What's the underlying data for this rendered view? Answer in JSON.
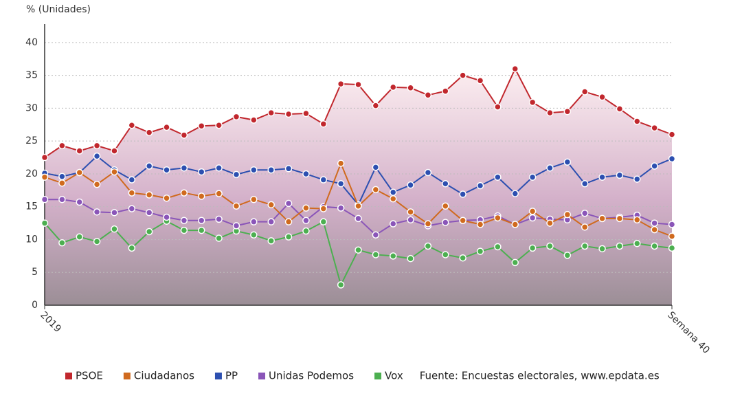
{
  "chart_data": {
    "type": "line",
    "y_axis_label": "% (Unidades)",
    "source": "Fuente: Encuestas electorales, www.epdata.es",
    "categories": [
      "2019",
      null,
      null,
      null,
      null,
      null,
      null,
      null,
      null,
      null,
      null,
      null,
      null,
      null,
      null,
      null,
      null,
      null,
      null,
      null,
      null,
      null,
      null,
      null,
      null,
      null,
      null,
      null,
      null,
      null,
      null,
      null,
      null,
      null,
      null,
      null,
      "Semana 40"
    ],
    "ylim": [
      0,
      42.5
    ],
    "yticks": [
      0,
      5,
      10,
      15,
      20,
      25,
      30,
      35,
      40
    ],
    "grid": true,
    "legend": "bottom",
    "series": [
      {
        "name": "PSOE",
        "color": "#c1272d",
        "values": [
          22.5,
          24.3,
          23.5,
          24.3,
          23.5,
          27.4,
          26.3,
          27.1,
          25.9,
          27.3,
          27.4,
          28.7,
          28.2,
          29.3,
          29.1,
          29.2,
          27.6,
          33.7,
          33.6,
          30.4,
          33.2,
          33.1,
          32.0,
          32.6,
          35.0,
          34.2,
          30.2,
          36.0,
          30.9,
          29.3,
          29.5,
          32.5,
          31.7,
          29.9,
          28.0,
          27.0,
          26.0
        ]
      },
      {
        "name": "Ciudadanos",
        "color": "#d06a1e",
        "values": [
          19.5,
          18.6,
          20.2,
          18.4,
          20.3,
          17.1,
          16.8,
          16.3,
          17.1,
          16.6,
          17.0,
          15.1,
          16.1,
          15.3,
          12.7,
          14.8,
          14.7,
          21.6,
          15.1,
          17.6,
          16.2,
          14.2,
          12.4,
          15.1,
          12.9,
          12.3,
          13.3,
          12.3,
          14.3,
          12.5,
          13.8,
          11.9,
          13.2,
          13.2,
          13.0,
          11.5,
          10.5
        ]
      },
      {
        "name": "PP",
        "color": "#2c4fb0",
        "values": [
          20.1,
          19.6,
          20.2,
          22.7,
          20.6,
          19.1,
          21.2,
          20.6,
          20.9,
          20.3,
          20.9,
          19.9,
          20.6,
          20.6,
          20.8,
          20.0,
          19.1,
          18.5,
          15.3,
          21.0,
          17.2,
          18.3,
          20.2,
          18.5,
          16.9,
          18.2,
          19.5,
          17.0,
          19.5,
          20.9,
          21.8,
          18.5,
          19.5,
          19.8,
          19.2,
          21.2,
          22.3
        ]
      },
      {
        "name": "Unidas Podemos",
        "color": "#8a55b8",
        "values": [
          16.1,
          16.1,
          15.7,
          14.2,
          14.1,
          14.7,
          14.1,
          13.4,
          12.9,
          12.9,
          13.1,
          12.1,
          12.7,
          12.7,
          15.5,
          12.9,
          15.0,
          14.8,
          13.2,
          10.7,
          12.4,
          13.0,
          12.1,
          12.6,
          12.9,
          13.0,
          13.6,
          12.3,
          13.3,
          13.1,
          13.0,
          14.0,
          13.2,
          13.4,
          13.7,
          12.5,
          12.3
        ]
      },
      {
        "name": "Vox",
        "color": "#4caf50",
        "values": [
          12.5,
          9.5,
          10.4,
          9.7,
          11.6,
          8.7,
          11.2,
          12.8,
          11.4,
          11.4,
          10.2,
          11.3,
          10.7,
          9.8,
          10.4,
          11.3,
          12.7,
          3.1,
          8.4,
          7.7,
          7.5,
          7.1,
          9.0,
          7.7,
          7.2,
          8.2,
          8.9,
          6.5,
          8.7,
          9.0,
          7.6,
          9.0,
          8.6,
          9.0,
          9.4,
          9.0,
          8.7
        ]
      }
    ]
  }
}
